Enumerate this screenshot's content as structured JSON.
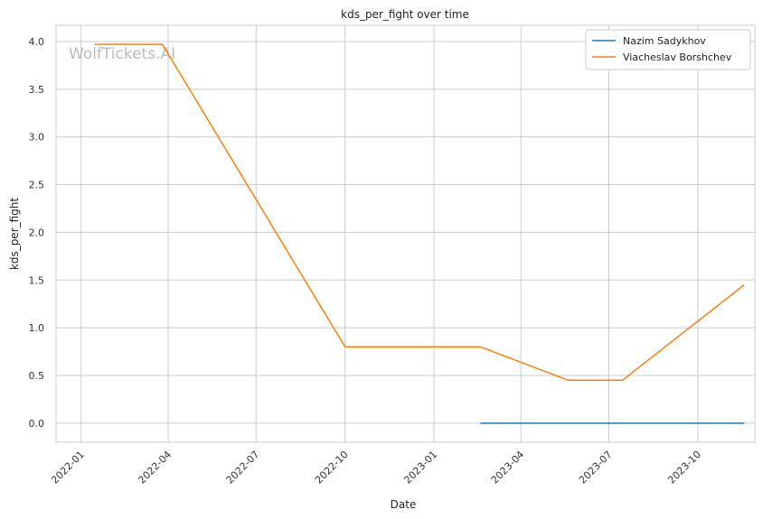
{
  "chart_data": {
    "type": "line",
    "title": "kds_per_fight over time",
    "xlabel": "Date",
    "ylabel": "kds_per_fight",
    "watermark": "WolfTickets.AI",
    "x_ticks": [
      "2022-01",
      "2022-04",
      "2022-07",
      "2022-10",
      "2023-01",
      "2023-04",
      "2023-07",
      "2023-10"
    ],
    "y_ticks": [
      "0.0",
      "0.5",
      "1.0",
      "1.5",
      "2.0",
      "2.5",
      "3.0",
      "3.5",
      "4.0"
    ],
    "xlim": [
      "2021-12-06",
      "2023-11-29"
    ],
    "ylim": [
      -0.2,
      4.17
    ],
    "grid": true,
    "legend_position": "top-right",
    "series": [
      {
        "name": "Nazim Sadykhov",
        "color": "#1f77b4",
        "x": [
          "2023-02-18",
          "2023-11-18"
        ],
        "y": [
          0.0,
          0.0
        ]
      },
      {
        "name": "Viacheslav Borshchev",
        "color": "#ff7f0e",
        "x": [
          "2022-01-15",
          "2022-03-26",
          "2022-10-01",
          "2023-02-18",
          "2023-05-20",
          "2023-07-15",
          "2023-11-18"
        ],
        "y": [
          3.97,
          3.97,
          0.8,
          0.8,
          0.45,
          0.45,
          1.45
        ]
      }
    ]
  }
}
